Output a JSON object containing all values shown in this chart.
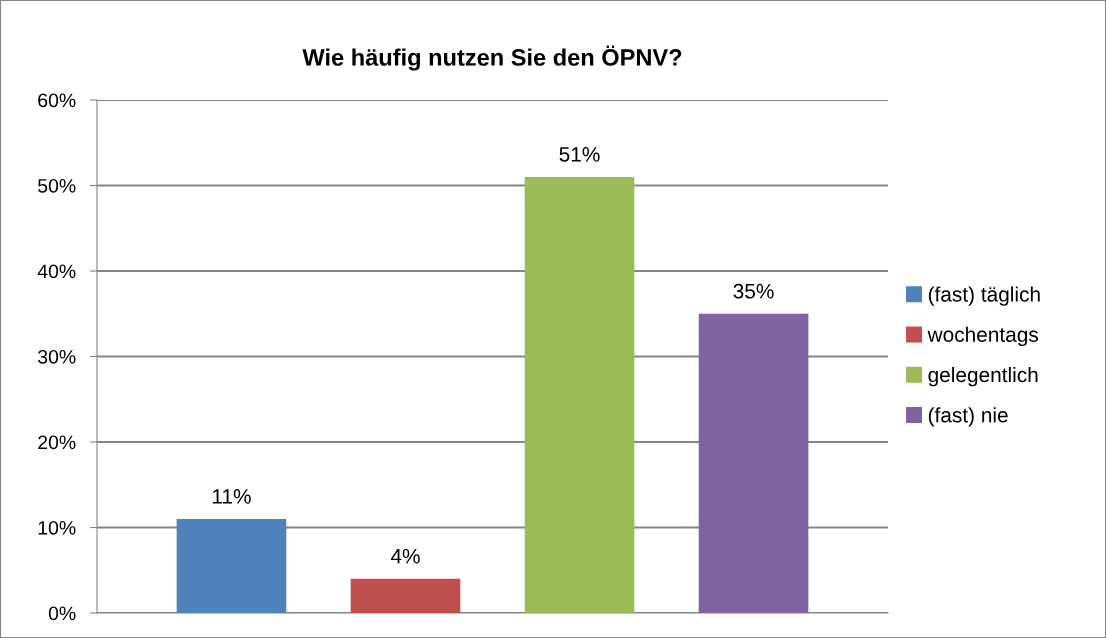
{
  "chart_data": {
    "type": "bar",
    "title": "Wie häufig nutzen Sie den ÖPNV?",
    "categories": [
      null
    ],
    "series": [
      {
        "name": "(fast) täglich",
        "color": "#4f81bd",
        "values": [
          11
        ],
        "value_labels": [
          "11%"
        ]
      },
      {
        "name": "wochentags",
        "color": "#c0504d",
        "values": [
          4
        ],
        "value_labels": [
          "4%"
        ]
      },
      {
        "name": "gelegentlich",
        "color": "#9bbb59",
        "values": [
          51
        ],
        "value_labels": [
          "51%"
        ]
      },
      {
        "name": "(fast) nie",
        "color": "#8064a2",
        "values": [
          35
        ],
        "value_labels": [
          "35%"
        ]
      }
    ],
    "ylim": [
      0,
      60
    ],
    "yticks": [
      {
        "value": 0,
        "label": "0%"
      },
      {
        "value": 10,
        "label": "10%"
      },
      {
        "value": 20,
        "label": "20%"
      },
      {
        "value": 30,
        "label": "30%"
      },
      {
        "value": 40,
        "label": "40%"
      },
      {
        "value": 50,
        "label": "50%"
      },
      {
        "value": 60,
        "label": "60%"
      }
    ],
    "grid": "y",
    "legend": "right"
  }
}
